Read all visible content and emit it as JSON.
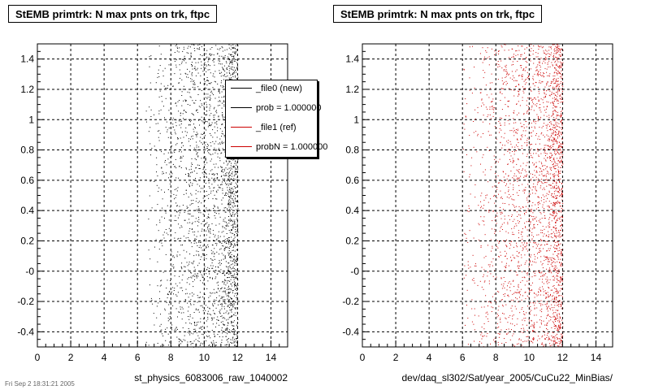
{
  "footer_text": "Fri Sep 2 18:31:21 2005",
  "pads": [
    {
      "title": "StEMB primtrk: N max pnts on trk, ftpc",
      "xlabel": "st_physics_6083006_raw_1040002",
      "marker_color": "#000000"
    },
    {
      "title": "StEMB primtrk: N max pnts on trk, ftpc",
      "xlabel": "dev/daq_sl302/Sat/year_2005/CuCu22_MinBias/",
      "marker_color": "#cc0000"
    }
  ],
  "legend": {
    "entries": [
      {
        "label": "_file0 (new)",
        "color": "#000000"
      },
      {
        "label": "prob = 1.000000",
        "color": "#000000"
      },
      {
        "label": "_file1 (ref)",
        "color": "#cc0000"
      },
      {
        "label": "probN = 1.000000",
        "color": "#cc0000"
      }
    ]
  },
  "chart_data": [
    {
      "type": "scatter",
      "title": "StEMB primtrk: N max pnts on trk, ftpc",
      "xlabel": "st_physics_6083006_raw_1040002",
      "ylabel": "",
      "xlim": [
        0,
        15
      ],
      "ylim": [
        -0.5,
        1.5
      ],
      "xticks": [
        0,
        2,
        4,
        6,
        8,
        10,
        12,
        14
      ],
      "yticks": [
        -0.4,
        -0.2,
        0,
        0.2,
        0.4,
        0.6,
        0.8,
        1,
        1.2,
        1.4
      ],
      "ytick_labels": [
        "-0.4",
        "-0.2",
        "-0",
        "0.2",
        "0.4",
        "0.6",
        "0.8",
        "1",
        "1.2",
        "1.4"
      ],
      "grid": true,
      "legend_position": "top-right",
      "series": [
        {
          "name": "_file0 (new)",
          "color": "#000000",
          "density_by_x": [
            {
              "x": [
                6.5,
                7.0
              ],
              "density": 0.05
            },
            {
              "x": [
                7.0,
                8.0
              ],
              "density": 0.12
            },
            {
              "x": [
                8.0,
                9.0
              ],
              "density": 0.2
            },
            {
              "x": [
                9.0,
                10.0
              ],
              "density": 0.3
            },
            {
              "x": [
                10.0,
                11.0
              ],
              "density": 0.35
            },
            {
              "x": [
                11.0,
                11.4
              ],
              "density": 0.55
            },
            {
              "x": [
                11.4,
                12.0
              ],
              "density": 1.0
            }
          ]
        }
      ]
    },
    {
      "type": "scatter",
      "title": "StEMB primtrk: N max pnts on trk, ftpc",
      "xlabel": "dev/daq_sl302/Sat/year_2005/CuCu22_MinBias/",
      "ylabel": "",
      "xlim": [
        0,
        15
      ],
      "ylim": [
        -0.5,
        1.5
      ],
      "xticks": [
        0,
        2,
        4,
        6,
        8,
        10,
        12,
        14
      ],
      "yticks": [
        -0.4,
        -0.2,
        0,
        0.2,
        0.4,
        0.6,
        0.8,
        1,
        1.2,
        1.4
      ],
      "ytick_labels": [
        "-0.4",
        "-0.2",
        "-0",
        "0.2",
        "0.4",
        "0.6",
        "0.8",
        "1",
        "1.2",
        "1.4"
      ],
      "grid": true,
      "series": [
        {
          "name": "_file1 (ref)",
          "color": "#cc0000",
          "density_by_x": [
            {
              "x": [
                6.0,
                7.0
              ],
              "density": 0.06
            },
            {
              "x": [
                7.0,
                8.0
              ],
              "density": 0.14
            },
            {
              "x": [
                8.0,
                9.0
              ],
              "density": 0.22
            },
            {
              "x": [
                9.0,
                10.0
              ],
              "density": 0.3
            },
            {
              "x": [
                10.0,
                11.0
              ],
              "density": 0.38
            },
            {
              "x": [
                11.0,
                11.4
              ],
              "density": 0.55
            },
            {
              "x": [
                11.4,
                12.0
              ],
              "density": 1.0
            }
          ]
        }
      ]
    }
  ]
}
